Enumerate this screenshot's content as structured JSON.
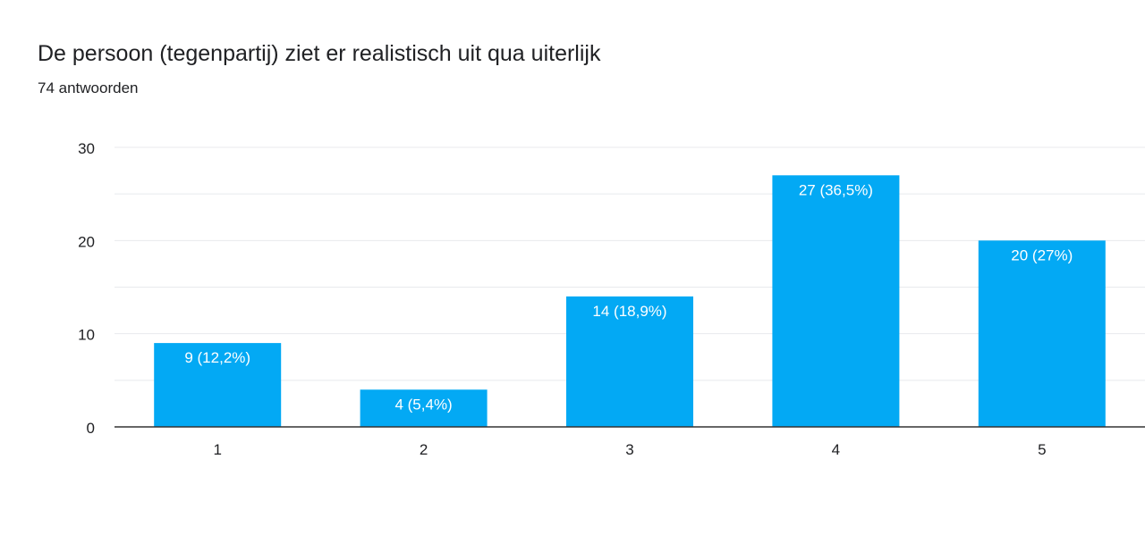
{
  "header": {
    "title": "De persoon (tegenpartij) ziet er realistisch uit qua uiterlijk",
    "subtitle": "74 antwoorden"
  },
  "colors": {
    "bar": "#03a9f4",
    "grid": "#e8eaed",
    "axis": "#333333",
    "bar_label": "#ffffff",
    "tick_label": "#202124"
  },
  "chart_data": {
    "type": "bar",
    "title": "De persoon (tegenpartij) ziet er realistisch uit qua uiterlijk",
    "subtitle": "74 antwoorden",
    "categories": [
      "1",
      "2",
      "3",
      "4",
      "5"
    ],
    "values": [
      9,
      4,
      14,
      27,
      20
    ],
    "data_labels": [
      "9 (12,2%)",
      "4 (5,4%)",
      "14 (18,9%)",
      "27 (36,5%)",
      "20 (27%)"
    ],
    "ylim": [
      0,
      30
    ],
    "yticks": [
      0,
      10,
      20,
      30
    ],
    "minor_grid_step": 5,
    "grid": true,
    "legend": "none",
    "xlabel": "",
    "ylabel": ""
  }
}
